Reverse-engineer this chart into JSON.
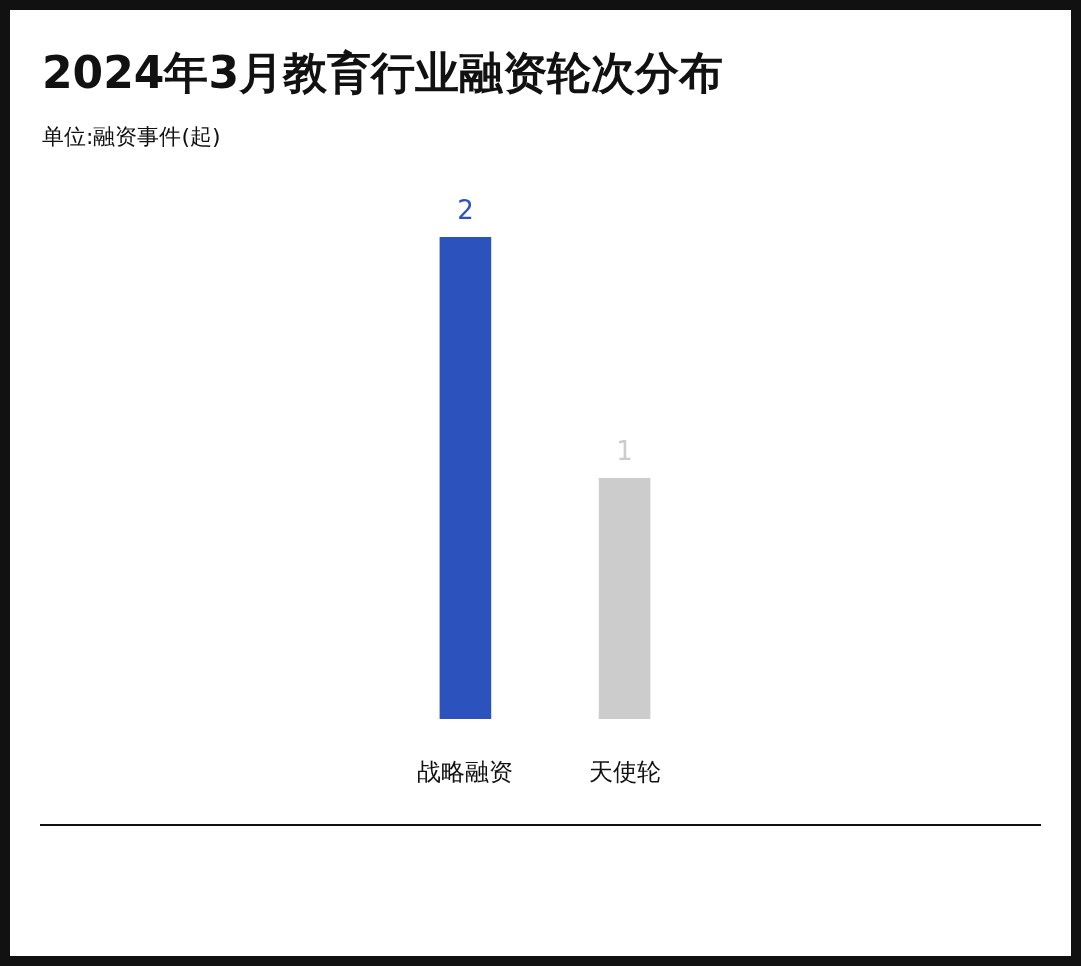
{
  "chart_data": {
    "type": "bar",
    "title": "2024年3月教育行业融资轮次分布",
    "subtitle": "单位:融资事件(起)",
    "categories": [
      "战略融资",
      "天使轮"
    ],
    "values": [
      2,
      1
    ],
    "colors": [
      "#2c52be",
      "#cccccc"
    ],
    "data_labels": true
  }
}
